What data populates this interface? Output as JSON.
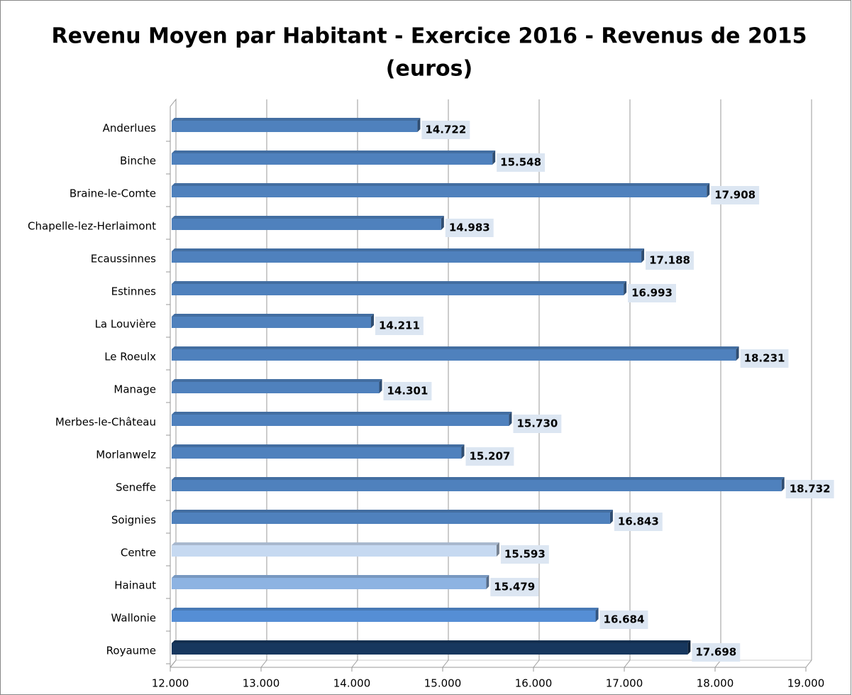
{
  "chart_data": {
    "type": "bar",
    "orientation": "horizontal",
    "title": "Revenu Moyen par Habitant - Exercice 2016 - Revenus de 2015",
    "subtitle": "(euros)",
    "categories": [
      "Anderlues",
      "Binche",
      "Braine-le-Comte",
      "Chapelle-lez-Herlaimont",
      "Ecaussinnes",
      "Estinnes",
      "La Louvière",
      "Le Roeulx",
      "Manage",
      "Merbes-le-Château",
      "Morlanwelz",
      "Seneffe",
      "Soignies",
      "Centre",
      "Hainaut",
      "Wallonie",
      "Royaume"
    ],
    "values": [
      14722,
      15548,
      17908,
      14983,
      17188,
      16993,
      14211,
      18231,
      14301,
      15730,
      15207,
      18732,
      16843,
      15593,
      15479,
      16684,
      17698
    ],
    "value_labels": [
      "14.722",
      "15.548",
      "17.908",
      "14.983",
      "17.188",
      "16.993",
      "14.211",
      "18.231",
      "14.301",
      "15.730",
      "15.207",
      "18.732",
      "16.843",
      "15.593",
      "15.479",
      "16.684",
      "17.698"
    ],
    "colors": [
      "#4f81bd",
      "#4f81bd",
      "#4f81bd",
      "#4f81bd",
      "#4f81bd",
      "#4f81bd",
      "#4f81bd",
      "#4f81bd",
      "#4f81bd",
      "#4f81bd",
      "#4f81bd",
      "#4f81bd",
      "#4f81bd",
      "#c6d9f1",
      "#8db3e2",
      "#558ed5",
      "#17375e"
    ],
    "xlim": [
      12000,
      19000
    ],
    "xticks": [
      {
        "value": 12000,
        "label": "12.000"
      },
      {
        "value": 13000,
        "label": "13.000"
      },
      {
        "value": 14000,
        "label": "14.000"
      },
      {
        "value": 15000,
        "label": "15.000"
      },
      {
        "value": 16000,
        "label": "16.000"
      },
      {
        "value": 17000,
        "label": "17.000"
      },
      {
        "value": 18000,
        "label": "18.000"
      },
      {
        "value": 19000,
        "label": "19.000"
      }
    ],
    "grid": true
  }
}
